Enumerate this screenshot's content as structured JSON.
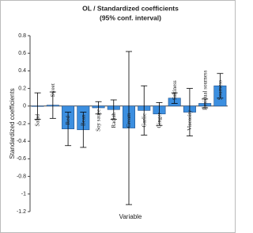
{
  "chart_data": {
    "type": "bar",
    "title": "OL / Standardized coefficients",
    "subtitle": "(95% conf. interval)",
    "x_label": "Variable",
    "y_label": "Standardized coefficients",
    "categories": [
      "Salad",
      "Sweet",
      "Red",
      "Bean",
      "Soy sauce",
      "Radish",
      "Cream",
      "Garlic",
      "Ginger",
      "Saltiness",
      "Viscosity",
      "Residual sourness",
      "Sourness"
    ],
    "values": [
      0.0,
      0.01,
      -0.26,
      -0.27,
      -0.02,
      -0.04,
      -0.25,
      -0.05,
      -0.09,
      0.09,
      -0.07,
      0.03,
      0.23
    ],
    "errors": [
      0.15,
      0.15,
      0.19,
      0.2,
      0.07,
      0.11,
      0.87,
      0.28,
      0.13,
      0.06,
      0.27,
      0.05,
      0.14
    ],
    "label_colors": [
      "#222",
      "#222",
      "#e00000",
      "#e00000",
      "#222",
      "#222",
      "#e00000",
      "#222",
      "#222",
      "#222",
      "#222",
      "#222",
      "#e00000"
    ],
    "color": "#3c8fe0",
    "ylim": [
      -1.2,
      0.8
    ],
    "yticks": [
      -1.2,
      -1,
      -0.8,
      -0.6,
      -0.4,
      -0.2,
      0,
      0.2,
      0.4,
      0.6,
      0.8
    ]
  }
}
